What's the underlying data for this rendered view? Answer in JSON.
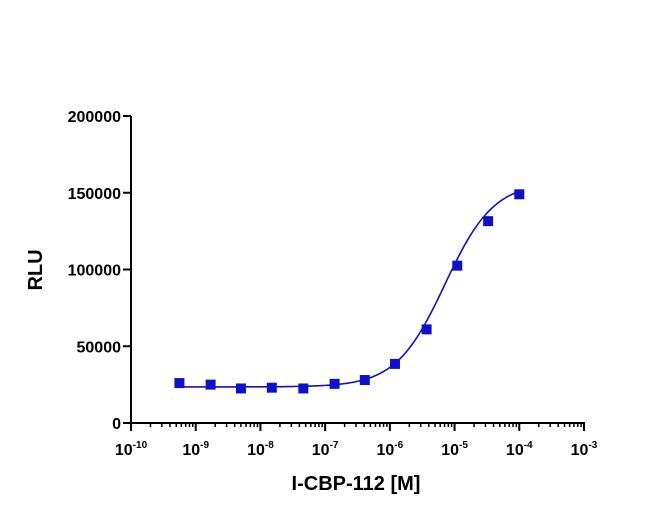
{
  "chart_data": {
    "type": "scatter",
    "title": "",
    "xlabel": "I-CBP-112 [M]",
    "ylabel": "RLU",
    "xscale": "log",
    "xlim": [
      1e-10,
      0.001
    ],
    "ylim": [
      0,
      200000
    ],
    "x_ticks": [
      {
        "base": "10",
        "exp": "-10"
      },
      {
        "base": "10",
        "exp": "-9"
      },
      {
        "base": "10",
        "exp": "-8"
      },
      {
        "base": "10",
        "exp": "-7"
      },
      {
        "base": "10",
        "exp": "-6"
      },
      {
        "base": "10",
        "exp": "-5"
      },
      {
        "base": "10",
        "exp": "-4"
      },
      {
        "base": "10",
        "exp": "-3"
      }
    ],
    "y_ticks": [
      "0",
      "50000",
      "100000",
      "150000",
      "200000"
    ],
    "grid": false,
    "legend": "none",
    "series": [
      {
        "marker": "square",
        "color": "#1010c8",
        "x": [
          5.6e-10,
          1.7e-09,
          5e-09,
          1.5e-08,
          4.6e-08,
          1.4e-07,
          4.1e-07,
          1.2e-06,
          3.7e-06,
          1.1e-05,
          3.3e-05,
          0.0001
        ],
        "y": [
          26000,
          25000,
          22500,
          23000,
          22500,
          25500,
          28000,
          38500,
          61000,
          102500,
          131500,
          149000
        ]
      }
    ],
    "fit": {
      "type": "sigmoidal dose-response",
      "color": "#1010c8",
      "bottom": 23500,
      "top": 157000,
      "log_ec50": -5.15,
      "hill_slope": 1.15
    }
  }
}
